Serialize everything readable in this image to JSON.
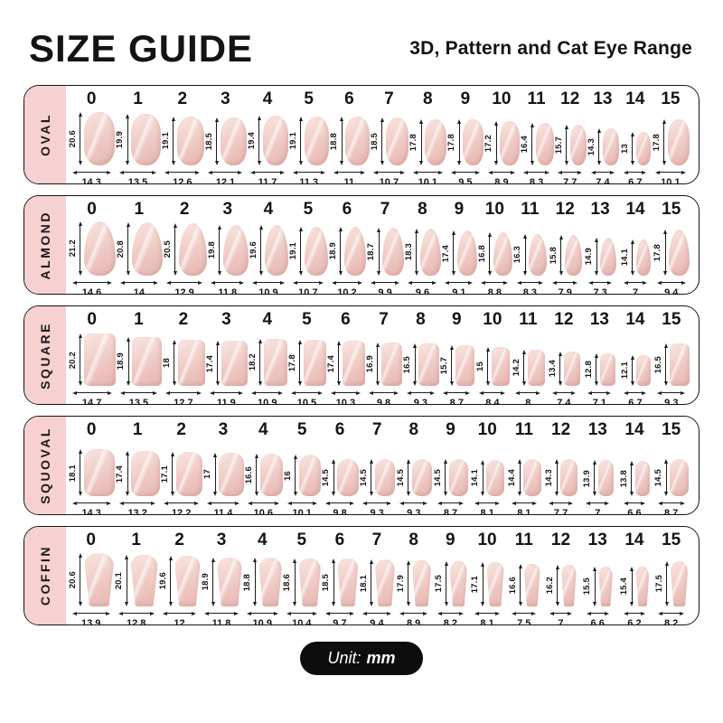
{
  "header": {
    "title": "SIZE GUIDE",
    "subtitle": "3D, Pattern and Cat Eye Range"
  },
  "footer": {
    "unit_label": "Unit:",
    "unit_value": "mm"
  },
  "colors": {
    "label_strip_bg": "#f7d1d1",
    "row_border": "#141414",
    "nail_light": "#f8e1dc",
    "nail_dark": "#e7b8b3",
    "footer_bg": "#0d0d0d"
  },
  "chart_data": {
    "type": "table",
    "title": "SIZE GUIDE",
    "subtitle": "3D, Pattern and Cat Eye Range",
    "unit": "mm",
    "sizes": [
      "0",
      "1",
      "2",
      "3",
      "4",
      "5",
      "6",
      "7",
      "8",
      "9",
      "10",
      "11",
      "12",
      "13",
      "14",
      "15"
    ],
    "rows": [
      {
        "label": "OVAL",
        "shape": "oval",
        "length_mm": [
          20.6,
          19.9,
          19.1,
          18.5,
          19.4,
          19.1,
          18.8,
          18.5,
          17.8,
          17.8,
          17.2,
          16.4,
          15.7,
          14.3,
          13,
          17.8
        ],
        "width_mm": [
          14.3,
          13.5,
          12.6,
          12.1,
          11.7,
          11.3,
          11,
          10.7,
          10.1,
          9.5,
          8.9,
          8.3,
          7.7,
          7.4,
          6.7,
          10.1
        ]
      },
      {
        "label": "ALMOND",
        "shape": "almond",
        "length_mm": [
          21.2,
          20.8,
          20.5,
          19.8,
          19.6,
          19.1,
          18.9,
          18.7,
          18.3,
          17.4,
          16.8,
          16.3,
          15.8,
          14.9,
          14.1,
          17.8
        ],
        "width_mm": [
          14.6,
          14,
          12.9,
          11.8,
          10.9,
          10.7,
          10.2,
          9.9,
          9.6,
          9.1,
          8.8,
          8.3,
          7.9,
          7.3,
          7,
          9.4
        ]
      },
      {
        "label": "SQUARE",
        "shape": "square",
        "length_mm": [
          20.2,
          18.9,
          18,
          17.4,
          18.2,
          17.8,
          17.4,
          16.9,
          16.5,
          15.7,
          15,
          14.2,
          13.4,
          12.8,
          12.1,
          16.5
        ],
        "width_mm": [
          14.7,
          13.5,
          12.7,
          11.9,
          10.9,
          10.5,
          10.3,
          9.8,
          9.3,
          8.7,
          8.4,
          8,
          7.4,
          7.1,
          6.7,
          9.3
        ]
      },
      {
        "label": "SQUOVAL",
        "shape": "squoval",
        "length_mm": [
          18.1,
          17.4,
          17.1,
          17,
          16.6,
          16,
          14.5,
          14.5,
          14.5,
          14.5,
          14.1,
          14.4,
          14.3,
          13.9,
          13.8,
          14.5
        ],
        "width_mm": [
          14.3,
          13.2,
          12.2,
          11.4,
          10.6,
          10.1,
          9.8,
          9.3,
          9.3,
          8.7,
          8.1,
          8.1,
          7.7,
          7,
          6.6,
          8.7
        ]
      },
      {
        "label": "COFFIN",
        "shape": "coffin",
        "length_mm": [
          20.6,
          20.1,
          19.6,
          18.9,
          18.8,
          18.6,
          18.5,
          18.1,
          17.9,
          17.5,
          17.1,
          16.6,
          16.2,
          15.5,
          15.4,
          17.5
        ],
        "width_mm": [
          13.9,
          12.8,
          12,
          11.8,
          10.9,
          10.4,
          9.7,
          9.4,
          8.9,
          8.2,
          8.1,
          7.5,
          7,
          6.6,
          6.2,
          8.2
        ]
      }
    ]
  }
}
